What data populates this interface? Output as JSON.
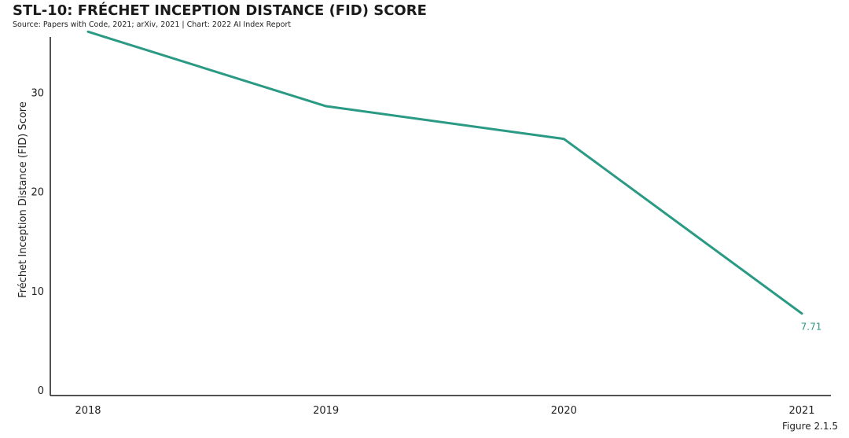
{
  "title": "STL-10: FRÉCHET INCEPTION DISTANCE (FID) SCORE",
  "source": "Source: Papers with Code, 2021; arXiv, 2021 | Chart: 2022 AI Index Report",
  "figure_label": "Figure 2.1.5",
  "colors": {
    "line": "#2a9a84",
    "axis": "#1a1a1a",
    "text": "#222222"
  },
  "chart_data": {
    "type": "line",
    "x": [
      "2018",
      "2019",
      "2020",
      "2021"
    ],
    "series": [
      {
        "values": [
          36.1,
          28.6,
          25.3,
          7.71
        ]
      }
    ],
    "ylabel": "Fréchet Inception Distance (FID) Score",
    "xlabel": "",
    "ylim": [
      0,
      37
    ],
    "yticks": [
      0,
      10,
      20,
      30
    ],
    "grid": false,
    "data_labels": [
      {
        "index": 3,
        "text": "7.71"
      }
    ]
  }
}
